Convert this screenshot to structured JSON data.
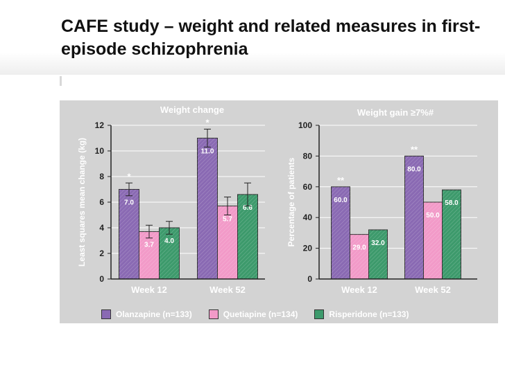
{
  "slide": {
    "title": "CAFE study – weight and related measures in first-episode schizophrenia"
  },
  "colors": {
    "Olanzapine": "#8a6ab3",
    "Quetiapine": "#f29ac8",
    "Risperidone": "#3d9a6c"
  },
  "chart_data": [
    {
      "type": "bar",
      "title": "Weight change",
      "xlabel": "",
      "ylabel": "Least squares mean change (kg)",
      "categories": [
        "Week 12",
        "Week 52"
      ],
      "ylim": [
        0,
        12
      ],
      "yticks": [
        0,
        2,
        4,
        6,
        8,
        10,
        12
      ],
      "series": [
        {
          "name": "Olanzapine (n=133)",
          "values": [
            7.0,
            11.0
          ],
          "labels": [
            "7.0",
            "11.0"
          ],
          "error": [
            0.5,
            0.7
          ]
        },
        {
          "name": "Quetiapine (n=134)",
          "values": [
            3.7,
            5.7
          ],
          "labels": [
            "3.7",
            "5.7"
          ],
          "error": [
            0.5,
            0.7
          ]
        },
        {
          "name": "Risperidone (n=133)",
          "values": [
            4.0,
            6.6
          ],
          "labels": [
            "4.0",
            "6.6"
          ],
          "error": [
            0.5,
            0.9
          ]
        }
      ],
      "annotations": [
        {
          "category": "Week 12",
          "series": "Olanzapine (n=133)",
          "text": "*"
        },
        {
          "category": "Week 52",
          "series": "Olanzapine (n=133)",
          "text": "*"
        }
      ],
      "legend": "bottom"
    },
    {
      "type": "bar",
      "title": "Weight gain ≥7%#",
      "xlabel": "",
      "ylabel": "Percentage of patients",
      "categories": [
        "Week 12",
        "Week 52"
      ],
      "ylim": [
        0,
        100
      ],
      "yticks": [
        0,
        20,
        40,
        60,
        80,
        100
      ],
      "series": [
        {
          "name": "Olanzapine (n=133)",
          "values": [
            60.0,
            80.0
          ],
          "labels": [
            "60.0",
            "80.0"
          ]
        },
        {
          "name": "Quetiapine (n=134)",
          "values": [
            29.0,
            50.0
          ],
          "labels": [
            "29.0",
            "50.0"
          ]
        },
        {
          "name": "Risperidone (n=133)",
          "values": [
            32.0,
            58.0
          ],
          "labels": [
            "32.0",
            "58.0"
          ]
        }
      ],
      "annotations": [
        {
          "category": "Week 12",
          "series": "Olanzapine (n=133)",
          "text": "**"
        },
        {
          "category": "Week 52",
          "series": "Olanzapine (n=133)",
          "text": "**"
        }
      ],
      "legend": "bottom"
    }
  ],
  "legend": {
    "items": [
      "Olanzapine (n=133)",
      "Quetiapine (n=134)",
      "Risperidone (n=133)"
    ]
  }
}
